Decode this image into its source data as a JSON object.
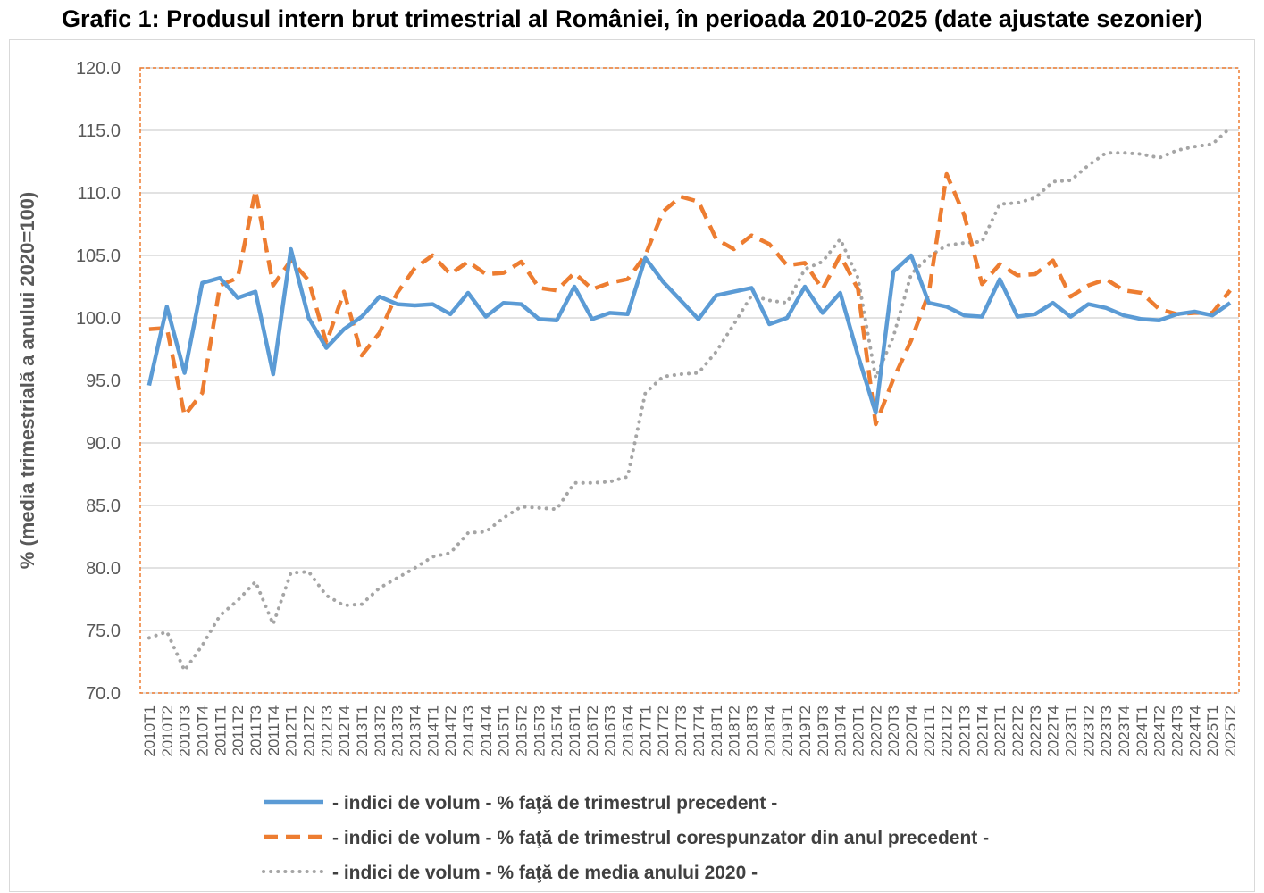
{
  "chart_data": {
    "type": "line",
    "title": "Grafic 1: Produsul intern brut trimestrial al României, în perioada 2010-2025 (date ajustate sezonier)",
    "ylabel": "% (media trimestrială a anului 2020=100)",
    "xlabel": "",
    "ylim": [
      70,
      120
    ],
    "yticks": [
      "70.0",
      "75.0",
      "80.0",
      "85.0",
      "90.0",
      "95.0",
      "100.0",
      "105.0",
      "110.0",
      "115.0",
      "120.0"
    ],
    "grid": "horizontal",
    "legend_position": "bottom",
    "categories": [
      "2010T1",
      "2010T2",
      "2010T3",
      "2010T4",
      "2011T1",
      "2011T2",
      "2011T3",
      "2011T4",
      "2012T1",
      "2012T2",
      "2012T3",
      "2012T4",
      "2013T1",
      "2013T2",
      "2013T3",
      "2013T4",
      "2014T1",
      "2014T2",
      "2014T3",
      "2014T4",
      "2015T1",
      "2015T2",
      "2015T3",
      "2015T4",
      "2016T1",
      "2016T2",
      "2016T3",
      "2016T4",
      "2017T1",
      "2017T2",
      "2017T3",
      "2017T4",
      "2018T1",
      "2018T2",
      "2018T3",
      "2018T4",
      "2019T1",
      "2019T2",
      "2019T3",
      "2019T4",
      "2020T1",
      "2020T2",
      "2020T3",
      "2020T4",
      "2021T1",
      "2021T2",
      "2021T3",
      "2021T4",
      "2022T1",
      "2022T2",
      "2022T3",
      "2022T4",
      "2023T1",
      "2023T2",
      "2023T3",
      "2023T4",
      "2024T1",
      "2024T2",
      "2024T3",
      "2024T4",
      "2025T1",
      "2025T2"
    ],
    "series": [
      {
        "name": "- indici de volum - % faţă de trimestrul precedent -",
        "color": "#5b9bd5",
        "style": "solid",
        "values": [
          94.6,
          100.9,
          95.6,
          102.8,
          103.2,
          101.6,
          102.1,
          95.5,
          105.5,
          100.0,
          97.6,
          99.1,
          100.1,
          101.7,
          101.1,
          101.0,
          101.1,
          100.3,
          102.0,
          100.1,
          101.2,
          101.1,
          99.9,
          99.8,
          102.5,
          99.9,
          100.4,
          100.3,
          104.8,
          102.9,
          101.4,
          99.9,
          101.8,
          102.1,
          102.4,
          99.5,
          100.0,
          102.5,
          100.4,
          102.0,
          97.0,
          92.4,
          103.7,
          105.0,
          101.2,
          100.9,
          100.2,
          100.1,
          103.1,
          100.1,
          100.3,
          101.2,
          100.1,
          101.1,
          100.8,
          100.2,
          99.9,
          99.8,
          100.3,
          100.5,
          100.2,
          101.2
        ]
      },
      {
        "name": "- indici de volum - % faţă de trimestrul corespunzator din anul precedent -",
        "color": "#ed7d31",
        "style": "dashed",
        "values": [
          99.1,
          99.2,
          92.2,
          94.0,
          102.6,
          103.2,
          110.2,
          102.6,
          104.6,
          103.0,
          98.0,
          102.1,
          97.0,
          98.8,
          102.0,
          104.0,
          105.0,
          103.5,
          104.5,
          103.5,
          103.6,
          104.5,
          102.4,
          102.2,
          103.6,
          102.3,
          102.8,
          103.1,
          105.0,
          108.5,
          109.7,
          109.3,
          106.3,
          105.5,
          106.6,
          105.9,
          104.2,
          104.4,
          102.3,
          105.0,
          102.3,
          91.5,
          95.1,
          98.2,
          102.0,
          111.5,
          108.2,
          102.7,
          104.3,
          103.4,
          103.5,
          104.6,
          101.7,
          102.6,
          103.1,
          102.2,
          102.0,
          100.7,
          100.3,
          100.4,
          100.4,
          102.2
        ]
      },
      {
        "name": "- indici de volum - % faţă de media anului 2020 -",
        "color": "#a5a5a5",
        "style": "dotted",
        "values": [
          74.4,
          74.9,
          71.8,
          73.8,
          76.2,
          77.4,
          78.9,
          75.5,
          79.6,
          79.7,
          77.8,
          77.0,
          77.1,
          78.4,
          79.2,
          80.0,
          80.9,
          81.2,
          82.8,
          82.9,
          84.0,
          84.9,
          84.8,
          84.7,
          86.8,
          86.8,
          86.9,
          87.3,
          94.0,
          95.3,
          95.5,
          95.6,
          97.3,
          99.5,
          101.8,
          101.4,
          101.2,
          103.9,
          104.5,
          106.3,
          103.2,
          95.2,
          98.5,
          103.5,
          104.9,
          105.8,
          106.0,
          106.1,
          109.1,
          109.2,
          109.6,
          110.9,
          111.0,
          112.2,
          113.2,
          113.2,
          113.1,
          112.8,
          113.4,
          113.7,
          113.9,
          115.2
        ]
      }
    ]
  }
}
